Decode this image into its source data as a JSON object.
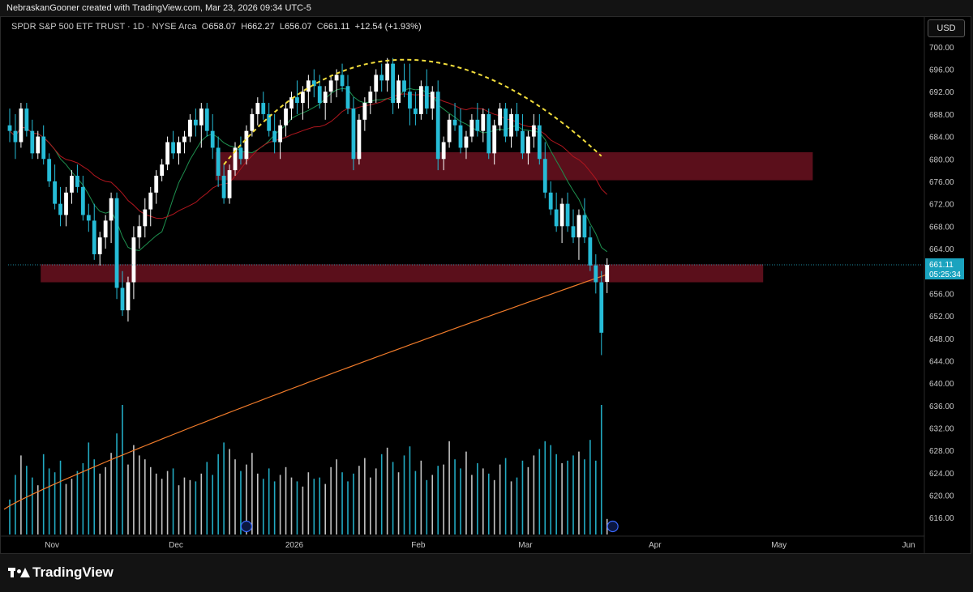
{
  "header": {
    "credit": "NebraskanGooner created with TradingView.com, Mar 23, 2026 09:34 UTC-5"
  },
  "legend": {
    "symbol": "SPDR S&P 500 ETF TRUST · 1D · NYSE Arca",
    "o_label": "O",
    "o": "658.07",
    "h_label": "H",
    "h": "662.27",
    "l_label": "L",
    "l": "656.07",
    "c_label": "C",
    "c": "661.11",
    "change": "+12.54 (+1.93%)"
  },
  "currency_button": "USD",
  "price_tag": {
    "price": "661.11",
    "countdown": "05:25:34"
  },
  "footer": {
    "brand": "TradingView"
  },
  "colors": {
    "up": "#ffffff",
    "down": "#26bcd7",
    "zone": "#6b1220",
    "ma200": "#f07b2a",
    "ma_short": "#1e8f4e",
    "ma_mid": "#b0161e",
    "arc": "#f2dd3c",
    "bg": "#000000"
  },
  "chart_data": {
    "type": "candlestick",
    "ylim": [
      613,
      702
    ],
    "ticks": [
      700,
      696,
      692,
      688,
      684,
      680,
      676,
      672,
      668,
      664,
      656,
      652,
      648,
      644,
      640,
      636,
      632,
      628,
      624,
      620,
      616
    ],
    "x_labels": [
      {
        "label": "Nov",
        "i": 7.5
      },
      {
        "label": "Dec",
        "i": 29.5
      },
      {
        "label": "2026",
        "i": 50.5
      },
      {
        "label": "Feb",
        "i": 72.5
      },
      {
        "label": "Mar",
        "i": 91.5
      },
      {
        "label": "Apr",
        "i": 114.5
      },
      {
        "label": "May",
        "i": 136.5
      },
      {
        "label": "Jun",
        "i": 159.5
      }
    ],
    "zones": [
      {
        "name": "resistance",
        "top": 681.2,
        "bottom": 676.2,
        "from_i": 36.5,
        "to_i": 142.5
      },
      {
        "name": "support",
        "top": 661.2,
        "bottom": 658.0,
        "from_i": 5.5,
        "to_i": 133.7
      }
    ],
    "arc": {
      "from": [
        38,
        679
      ],
      "to": [
        105,
        680.5
      ],
      "peak": [
        69.5,
        697.7
      ]
    },
    "volume_max": 100,
    "candles": [
      [
        686,
        689,
        683,
        685,
        27
      ],
      [
        685,
        688,
        680,
        683,
        46
      ],
      [
        683,
        690,
        682,
        689,
        61
      ],
      [
        689,
        690,
        684,
        685,
        53
      ],
      [
        685,
        687,
        680,
        681,
        44
      ],
      [
        681,
        685,
        680,
        684,
        38
      ],
      [
        684,
        686,
        679,
        680,
        62
      ],
      [
        680,
        681,
        675,
        676,
        51
      ],
      [
        676,
        679,
        671,
        672,
        48
      ],
      [
        672,
        675,
        668,
        670,
        57
      ],
      [
        670,
        675,
        668,
        674,
        39
      ],
      [
        674,
        678,
        672,
        677,
        43
      ],
      [
        677,
        679,
        674,
        675,
        49
      ],
      [
        675,
        677,
        669,
        670,
        55
      ],
      [
        670,
        672,
        667,
        669,
        71
      ],
      [
        669,
        672,
        662,
        663,
        58
      ],
      [
        663,
        667,
        661,
        666,
        47
      ],
      [
        666,
        670,
        664,
        669,
        52
      ],
      [
        669,
        674,
        665,
        673,
        63
      ],
      [
        673,
        674,
        655,
        657,
        78
      ],
      [
        657,
        660,
        652,
        653,
        100
      ],
      [
        653,
        659,
        651,
        658,
        54
      ],
      [
        658,
        668,
        655,
        666,
        69
      ],
      [
        666,
        670,
        664,
        668,
        61
      ],
      [
        668,
        673,
        666,
        671,
        58
      ],
      [
        671,
        675,
        668,
        674,
        52
      ],
      [
        674,
        678,
        672,
        677,
        47
      ],
      [
        677,
        680,
        676,
        679,
        43
      ],
      [
        679,
        684,
        678,
        683,
        49
      ],
      [
        683,
        685,
        680,
        681,
        51
      ],
      [
        681,
        684,
        679,
        683,
        38
      ],
      [
        683,
        685,
        681,
        684,
        44
      ],
      [
        684,
        688,
        683,
        687,
        42
      ],
      [
        687,
        689,
        684,
        686,
        41
      ],
      [
        686,
        690,
        682,
        689,
        47
      ],
      [
        689,
        690,
        684,
        685,
        56
      ],
      [
        685,
        688,
        680,
        682,
        46
      ],
      [
        682,
        684,
        675,
        677,
        62
      ],
      [
        677,
        679,
        672,
        673,
        71
      ],
      [
        673,
        679,
        672,
        678,
        66
      ],
      [
        678,
        683,
        677,
        682,
        58
      ],
      [
        682,
        684,
        679,
        680,
        49
      ],
      [
        680,
        686,
        679,
        685,
        54
      ],
      [
        685,
        689,
        684,
        688,
        63
      ],
      [
        688,
        691,
        686,
        690,
        47
      ],
      [
        690,
        692,
        687,
        688,
        43
      ],
      [
        688,
        690,
        684,
        685,
        51
      ],
      [
        685,
        688,
        681,
        683,
        41
      ],
      [
        683,
        687,
        680,
        686,
        46
      ],
      [
        686,
        690,
        684,
        689,
        52
      ],
      [
        689,
        692,
        687,
        691,
        44
      ],
      [
        691,
        694,
        688,
        690,
        41
      ],
      [
        690,
        693,
        687,
        692,
        37
      ],
      [
        692,
        695,
        689,
        694,
        48
      ],
      [
        694,
        696,
        691,
        693,
        43
      ],
      [
        693,
        695,
        689,
        690,
        44
      ],
      [
        690,
        693,
        687,
        692,
        39
      ],
      [
        692,
        695,
        690,
        694,
        52
      ],
      [
        694,
        696,
        691,
        695,
        58
      ],
      [
        695,
        697,
        692,
        693,
        48
      ],
      [
        693,
        695,
        688,
        689,
        41
      ],
      [
        689,
        691,
        678,
        680,
        47
      ],
      [
        680,
        688,
        679,
        687,
        53
      ],
      [
        687,
        691,
        685,
        690,
        59
      ],
      [
        690,
        693,
        688,
        692,
        44
      ],
      [
        692,
        696,
        690,
        695,
        51
      ],
      [
        695,
        697,
        692,
        694,
        62
      ],
      [
        694,
        698,
        692,
        697,
        67
      ],
      [
        697,
        698,
        688,
        690,
        56
      ],
      [
        690,
        695,
        689,
        694,
        48
      ],
      [
        694,
        697,
        691,
        692,
        61
      ],
      [
        692,
        697,
        686,
        689,
        68
      ],
      [
        689,
        692,
        686,
        688,
        49
      ],
      [
        688,
        694,
        687,
        693,
        57
      ],
      [
        693,
        696,
        688,
        689,
        42
      ],
      [
        689,
        693,
        687,
        692,
        46
      ],
      [
        692,
        694,
        678,
        680,
        53
      ],
      [
        680,
        684,
        678,
        683,
        54
      ],
      [
        683,
        688,
        682,
        687,
        72
      ],
      [
        687,
        690,
        685,
        686,
        58
      ],
      [
        686,
        689,
        681,
        682,
        51
      ],
      [
        682,
        685,
        680,
        684,
        64
      ],
      [
        684,
        688,
        683,
        687,
        46
      ],
      [
        687,
        690,
        684,
        685,
        55
      ],
      [
        685,
        689,
        683,
        688,
        51
      ],
      [
        688,
        689,
        680,
        681,
        47
      ],
      [
        681,
        687,
        679,
        686,
        42
      ],
      [
        686,
        690,
        685,
        689,
        54
      ],
      [
        689,
        690,
        683,
        684,
        59
      ],
      [
        684,
        689,
        682,
        688,
        41
      ],
      [
        688,
        690,
        684,
        685,
        44
      ],
      [
        685,
        688,
        680,
        681,
        57
      ],
      [
        681,
        685,
        679,
        684,
        52
      ],
      [
        684,
        688,
        682,
        686,
        61
      ],
      [
        686,
        688,
        679,
        680,
        66
      ],
      [
        680,
        683,
        673,
        674,
        72
      ],
      [
        674,
        676,
        670,
        671,
        69
      ],
      [
        671,
        674,
        667,
        668,
        62
      ],
      [
        668,
        673,
        665,
        672,
        55
      ],
      [
        672,
        674,
        667,
        668,
        57
      ],
      [
        668,
        671,
        665,
        666,
        61
      ],
      [
        666,
        671,
        662,
        670,
        64
      ],
      [
        670,
        673,
        665,
        666,
        58
      ],
      [
        666,
        668,
        660,
        661,
        73
      ],
      [
        661,
        663,
        656,
        658,
        57
      ],
      [
        658,
        660,
        645,
        649,
        100
      ],
      [
        658.07,
        662.27,
        656.07,
        661.11,
        12
      ]
    ]
  }
}
